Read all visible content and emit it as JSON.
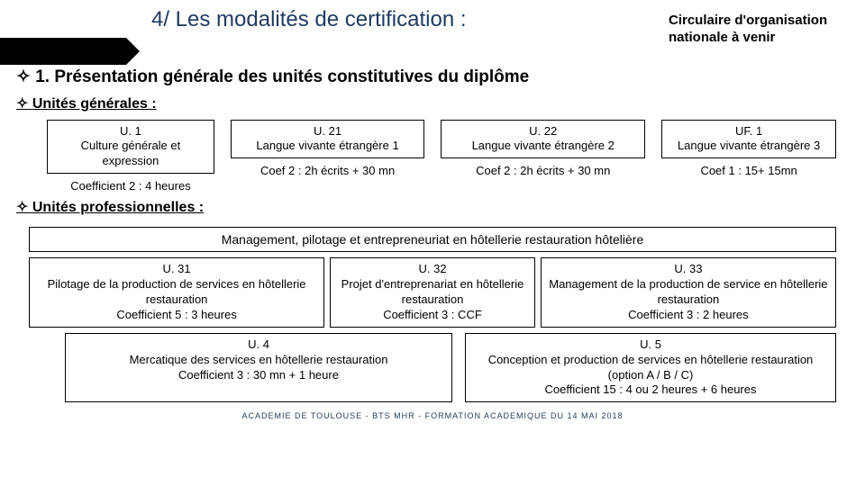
{
  "colors": {
    "accent": "#1f3a5f",
    "bar": "#000000",
    "bg": "#ffffff",
    "border": "#000000"
  },
  "header": {
    "title": "4/ Les modalités de certification :",
    "note": "Circulaire d'organisation nationale à venir"
  },
  "sections": {
    "s1": "1. Présentation générale des unités constitutives du diplôme",
    "s2": "Unités générales :",
    "s3": "Unités professionnelles :"
  },
  "bullet": "✧",
  "general": {
    "u1": {
      "code": "U. 1",
      "label": "Culture générale et expression",
      "coef": "Coefficient 2 : 4 heures"
    },
    "u21": {
      "code": "U. 21",
      "label": "Langue vivante étrangère 1",
      "coef": "Coef 2 : 2h écrits + 30 mn"
    },
    "u22": {
      "code": "U. 22",
      "label": "Langue vivante étrangère 2",
      "coef": "Coef 2 : 2h écrits + 30 mn"
    },
    "uf1": {
      "code": "UF. 1",
      "label": "Langue vivante étrangère 3",
      "coef": "Coef 1 : 15+ 15mn"
    }
  },
  "professional": {
    "banner": "Management, pilotage et entrepreneuriat en hôtellerie restauration hôtelière",
    "u31": {
      "code": "U. 31",
      "label": "Pilotage de la production de services en hôtellerie restauration",
      "coef": "Coefficient 5 : 3 heures"
    },
    "u32": {
      "code": "U. 32",
      "label": "Projet d'entreprenariat en hôtellerie restauration",
      "coef": "Coefficient 3 : CCF"
    },
    "u33": {
      "code": "U. 33",
      "label": "Management de la production de service en hôtellerie restauration",
      "coef": "Coefficient 3 : 2 heures"
    },
    "u4": {
      "code": "U. 4",
      "label": "Mercatique des services en hôtellerie restauration",
      "coef": "Coefficient 3 : 30 mn + 1 heure"
    },
    "u5": {
      "code": "U. 5",
      "label": "Conception et production de services en hôtellerie restauration",
      "option": "(option A / B / C)",
      "coef": "Coefficient 15 : 4 ou 2 heures + 6 heures"
    }
  },
  "footer": "ACADEMIE DE TOULOUSE - BTS MHR - FORMATION ACADEMIQUE DU 14 MAI 2018"
}
